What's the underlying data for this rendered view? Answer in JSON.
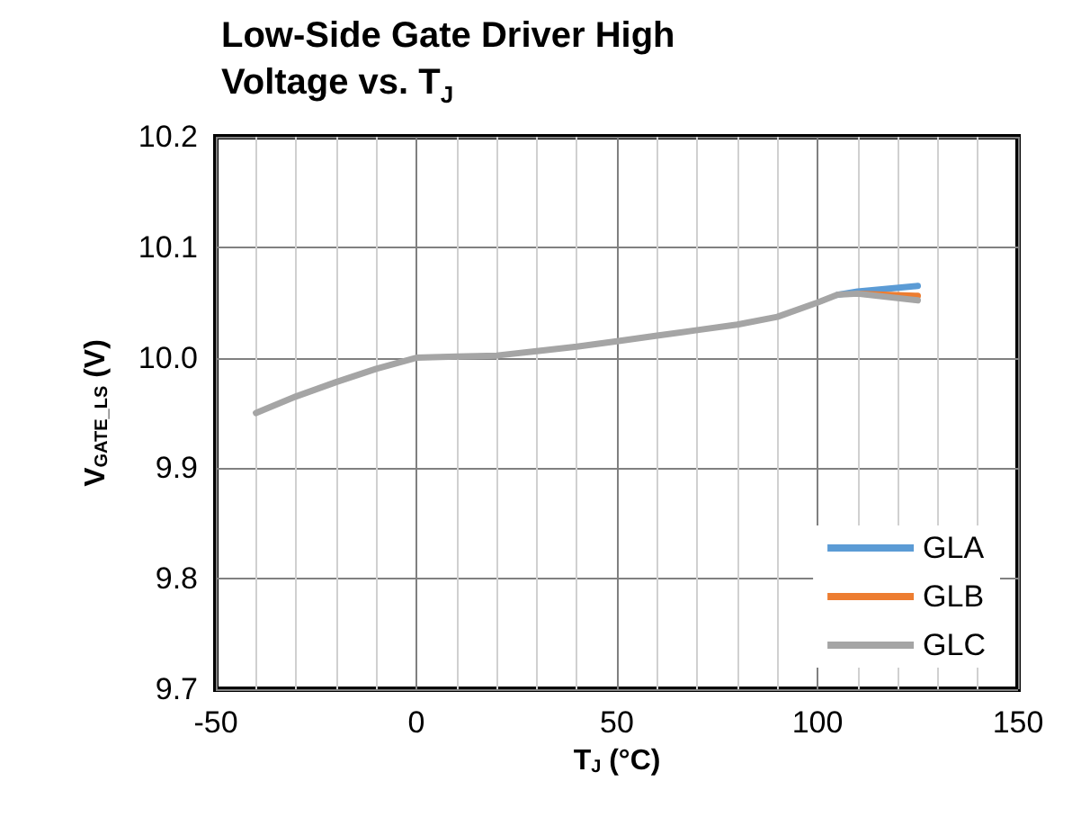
{
  "chart_data": {
    "type": "line",
    "title": "Low-Side Gate Driver High Voltage vs. T$_{J}$",
    "xlabel": "T$_{J}$ (°C)",
    "ylabel": "V$_{GATE_LS}$ (V)",
    "x": [
      -40,
      -30,
      -20,
      -10,
      0,
      10,
      20,
      30,
      40,
      50,
      60,
      70,
      80,
      90,
      100,
      105,
      110,
      125
    ],
    "series": [
      {
        "name": "GLA",
        "color": "#5b9bd5",
        "values": [
          null,
          null,
          null,
          null,
          null,
          null,
          null,
          null,
          null,
          null,
          null,
          null,
          null,
          null,
          null,
          10.057,
          10.06,
          10.065
        ]
      },
      {
        "name": "GLB",
        "color": "#ed7d31",
        "values": [
          null,
          null,
          null,
          null,
          null,
          null,
          null,
          null,
          null,
          null,
          null,
          null,
          null,
          null,
          null,
          null,
          10.058,
          10.056
        ]
      },
      {
        "name": "GLC",
        "color": "#a5a5a5",
        "values": [
          9.95,
          9.965,
          9.978,
          9.99,
          10.0,
          10.001,
          10.002,
          10.006,
          10.01,
          10.015,
          10.02,
          10.025,
          10.03,
          10.037,
          10.05,
          10.057,
          10.058,
          10.052
        ]
      }
    ],
    "xlim": [
      -50,
      150
    ],
    "xticks": [
      -50,
      0,
      50,
      100,
      150
    ],
    "ylim": [
      9.7,
      10.2
    ],
    "yticks": [
      {
        "value": 9.7,
        "label": "9.7"
      },
      {
        "value": 9.8,
        "label": "9.8"
      },
      {
        "value": 9.9,
        "label": "9.9"
      },
      {
        "value": 10.0,
        "label": "10.0"
      },
      {
        "value": 10.1,
        "label": "10.1"
      },
      {
        "value": 10.2,
        "label": "10.2"
      }
    ],
    "grid": true,
    "legend": "bottom right",
    "marker": "none",
    "line_style": "solid"
  }
}
